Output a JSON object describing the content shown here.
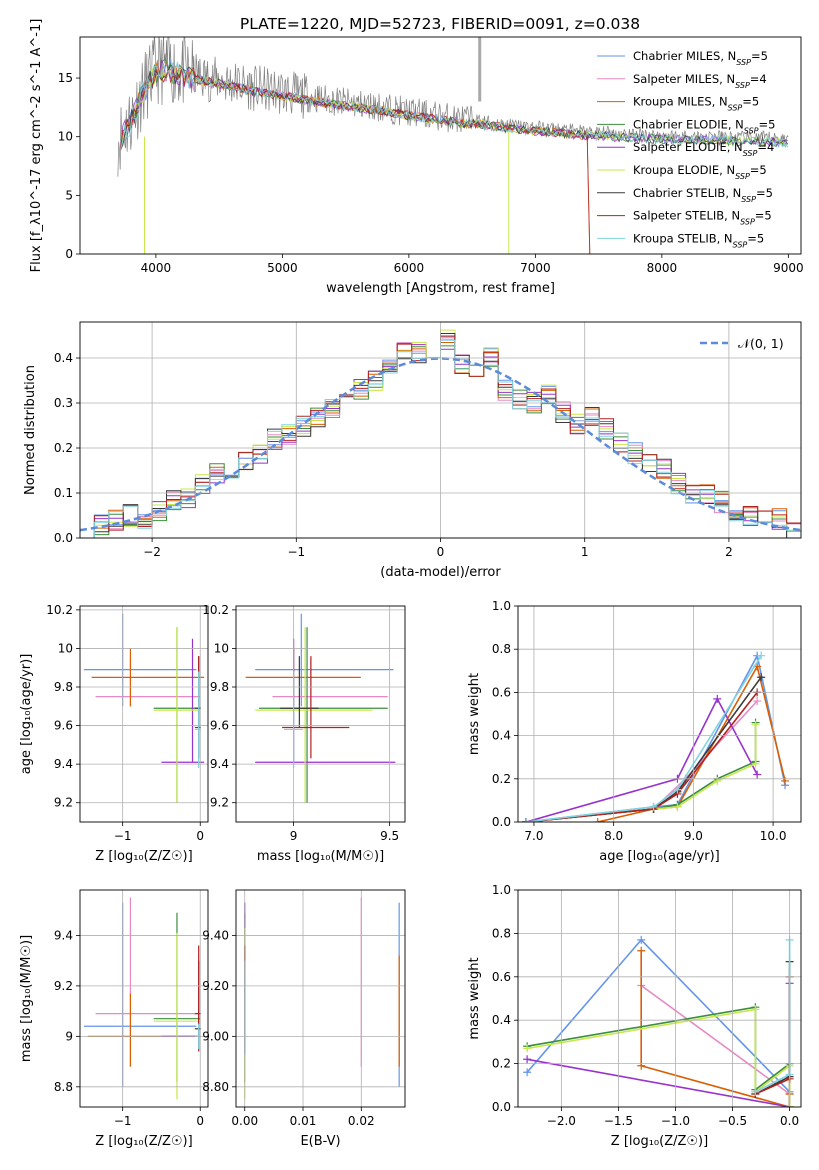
{
  "title": "PLATE=1220, MJD=52723, FIBERID=0091, z=0.038",
  "series_colors": [
    "#6495ed",
    "#e78ac3",
    "#d95f02",
    "#3c8d3c",
    "#9932cc",
    "#c6e84b",
    "#3a3a3a",
    "#b22222",
    "#7fd4e0"
  ],
  "chart_data": [
    {
      "id": "spectrum",
      "type": "line",
      "xlabel": "wavelength [Angstrom, rest frame]",
      "ylabel": "Flux [f_λ10^-17 erg cm^-2 s^-1 A^-1]",
      "xlim": [
        3400,
        9100
      ],
      "ylim": [
        0,
        18.5
      ],
      "xticks": [
        4000,
        5000,
        6000,
        7000,
        8000,
        9000
      ],
      "yticks": [
        0,
        5,
        10,
        15
      ],
      "grid": false,
      "legend_position": "top-right",
      "legend": [
        {
          "label": "Chabrier MILES, N",
          "sub": "SSP",
          "tail": "=5",
          "color": "#6495ed"
        },
        {
          "label": "Salpeter MILES, N",
          "sub": "SSP",
          "tail": "=4",
          "color": "#e78ac3"
        },
        {
          "label": "Kroupa MILES, N",
          "sub": "SSP",
          "tail": "=5",
          "color": "#d95f02"
        },
        {
          "label": "Chabrier ELODIE, N",
          "sub": "SSP",
          "tail": "=5",
          "color": "#3c8d3c"
        },
        {
          "label": "Salpeter ELODIE, N",
          "sub": "SSP",
          "tail": "=4",
          "color": "#9932cc"
        },
        {
          "label": "Kroupa ELODIE, N",
          "sub": "SSP",
          "tail": "=5",
          "color": "#c6e84b"
        },
        {
          "label": "Chabrier STELIB, N",
          "sub": "SSP",
          "tail": "=5",
          "color": "#3a3a3a"
        },
        {
          "label": "Salpeter STELIB, N",
          "sub": "SSP",
          "tail": "=5",
          "color": "#b22222"
        },
        {
          "label": "Kroupa STELIB, N",
          "sub": "SSP",
          "tail": "=5",
          "color": "#7fd4e0"
        }
      ],
      "data_continuum": {
        "x": [
          3700,
          3800,
          3900,
          4000,
          4100,
          4200,
          4400,
          4600,
          4800,
          5000,
          5200,
          5500,
          5800,
          6000,
          6200,
          6400,
          6600,
          6800,
          7000,
          7200,
          7400,
          7600,
          7800,
          8000,
          8200,
          8400,
          8600,
          8800,
          9000
        ],
        "y": [
          9.8,
          11.5,
          14.0,
          15.8,
          16.0,
          15.5,
          15.0,
          14.6,
          14.1,
          13.8,
          13.4,
          12.9,
          12.5,
          12.1,
          11.8,
          11.5,
          11.3,
          11.0,
          10.8,
          10.6,
          10.4,
          10.3,
          10.2,
          10.1,
          10.0,
          10.0,
          9.9,
          9.9,
          9.8
        ]
      }
    },
    {
      "id": "residuals",
      "type": "histogram",
      "xlabel": "(data-model)/error",
      "ylabel": "Normed distribution",
      "xlim": [
        -2.5,
        2.5
      ],
      "ylim": [
        0,
        0.48
      ],
      "xticks": [
        -2,
        -1,
        0,
        1,
        2
      ],
      "yticks": [
        0.0,
        0.1,
        0.2,
        0.3,
        0.4
      ],
      "grid": true,
      "bin_width": 0.1,
      "bins_left": [
        -2.5,
        -2.4,
        -2.3,
        -2.2,
        -2.1,
        -2.0,
        -1.9,
        -1.8,
        -1.7,
        -1.6,
        -1.5,
        -1.4,
        -1.3,
        -1.2,
        -1.1,
        -1.0,
        -0.9,
        -0.8,
        -0.7,
        -0.6,
        -0.5,
        -0.4,
        -0.3,
        -0.2,
        -0.1,
        0.0,
        0.1,
        0.2,
        0.3,
        0.4,
        0.5,
        0.6,
        0.7,
        0.8,
        0.9,
        1.0,
        1.1,
        1.2,
        1.3,
        1.4,
        1.5,
        1.6,
        1.7,
        1.8,
        1.9,
        2.0,
        2.1,
        2.2,
        2.3,
        2.4
      ],
      "hist": [
        0.02,
        0.03,
        0.04,
        0.05,
        0.04,
        0.06,
        0.08,
        0.09,
        0.12,
        0.14,
        0.13,
        0.17,
        0.19,
        0.22,
        0.23,
        0.25,
        0.27,
        0.29,
        0.31,
        0.33,
        0.35,
        0.38,
        0.42,
        0.41,
        0.38,
        0.44,
        0.39,
        0.38,
        0.4,
        0.33,
        0.31,
        0.3,
        0.32,
        0.28,
        0.25,
        0.27,
        0.24,
        0.21,
        0.19,
        0.17,
        0.15,
        0.12,
        0.1,
        0.1,
        0.08,
        0.06,
        0.05,
        0.05,
        0.04,
        0.02
      ],
      "gaussian_label": "𝒩(0, 1)",
      "gaussian_color": "#5b8bd9",
      "legend_position": "top-right"
    },
    {
      "id": "age_vs_Z",
      "type": "errorbar",
      "xlabel": "Z [log₁₀(Z/Z☉)]",
      "ylabel": "age [log₁₀(age/yr)]",
      "xlim": [
        -1.55,
        0.1
      ],
      "ylim": [
        9.1,
        10.22
      ],
      "xticks": [
        -1,
        0
      ],
      "yticks": [
        9.2,
        9.4,
        9.6,
        9.8,
        10.0,
        10.2
      ],
      "grid": true,
      "points": [
        {
          "x": -1.0,
          "xerr": [
            0.5,
            0.95
          ],
          "y": 9.89,
          "yerr": [
            0.19,
            0.29
          ],
          "color": "#6495ed"
        },
        {
          "x": -0.9,
          "xerr": [
            0.45,
            0.9
          ],
          "y": 9.75,
          "yerr": [
            0.05,
            0.2
          ],
          "color": "#e78ac3"
        },
        {
          "x": -0.9,
          "xerr": [
            0.5,
            0.95
          ],
          "y": 9.85,
          "yerr": [
            0.15,
            0.15
          ],
          "color": "#d95f02"
        },
        {
          "x": -0.3,
          "xerr": [
            0.3,
            0.3
          ],
          "y": 9.69,
          "yerr": [
            0.49,
            0.42
          ],
          "color": "#3c8d3c"
        },
        {
          "x": -0.1,
          "xerr": [
            0.4,
            0.15
          ],
          "y": 9.41,
          "yerr": [
            0.0,
            0.64
          ],
          "color": "#9932cc"
        },
        {
          "x": -0.3,
          "xerr": [
            0.3,
            0.28
          ],
          "y": 9.68,
          "yerr": [
            0.48,
            0.43
          ],
          "color": "#c6e84b"
        },
        {
          "x": -0.02,
          "xerr": [
            0.05,
            0.03
          ],
          "y": 9.69,
          "yerr": [
            0.1,
            0.27
          ],
          "color": "#3a3a3a"
        },
        {
          "x": -0.02,
          "xerr": [
            0.05,
            0.03
          ],
          "y": 9.59,
          "yerr": [
            0.16,
            0.37
          ],
          "color": "#b22222"
        },
        {
          "x": -0.02,
          "xerr": [
            0.05,
            0.03
          ],
          "y": 9.58,
          "yerr": [
            0.2,
            0.3
          ],
          "color": "#7fd4e0"
        }
      ]
    },
    {
      "id": "age_vs_mass",
      "type": "errorbar",
      "xlabel": "mass [log₁₀(M/M☉)]",
      "ylabel": "",
      "xlim": [
        8.7,
        9.58
      ],
      "ylim": [
        9.1,
        10.22
      ],
      "xticks": [
        9.0,
        9.5
      ],
      "yticks": [
        9.2,
        9.4,
        9.6,
        9.8,
        10.0,
        10.2
      ],
      "grid": true,
      "points": [
        {
          "x": 9.04,
          "xerr": [
            0.24,
            0.48
          ],
          "y": 9.89,
          "yerr": [
            0.19,
            0.29
          ],
          "color": "#6495ed"
        },
        {
          "x": 9.09,
          "xerr": [
            0.2,
            0.4
          ],
          "y": 9.75,
          "yerr": [
            0.05,
            0.2
          ],
          "color": "#e78ac3"
        },
        {
          "x": 9.0,
          "xerr": [
            0.25,
            0.35
          ],
          "y": 9.85,
          "yerr": [
            0.15,
            0.15
          ],
          "color": "#d95f02"
        },
        {
          "x": 9.07,
          "xerr": [
            0.25,
            0.42
          ],
          "y": 9.69,
          "yerr": [
            0.49,
            0.42
          ],
          "color": "#3c8d3c"
        },
        {
          "x": 9.0,
          "xerr": [
            0.2,
            0.53
          ],
          "y": 9.41,
          "yerr": [
            0.0,
            0.64
          ],
          "color": "#9932cc"
        },
        {
          "x": 9.06,
          "xerr": [
            0.26,
            0.35
          ],
          "y": 9.68,
          "yerr": [
            0.48,
            0.43
          ],
          "color": "#c6e84b"
        },
        {
          "x": 9.03,
          "xerr": [
            0.1,
            0.1
          ],
          "y": 9.69,
          "yerr": [
            0.1,
            0.27
          ],
          "color": "#3a3a3a"
        },
        {
          "x": 9.09,
          "xerr": [
            0.15,
            0.2
          ],
          "y": 9.59,
          "yerr": [
            0.16,
            0.37
          ],
          "color": "#b22222"
        },
        {
          "x": 9.0,
          "xerr": [
            0.05,
            0.05
          ],
          "y": 9.58,
          "yerr": [
            0.2,
            0.3
          ],
          "color": "#7fd4e0"
        }
      ]
    },
    {
      "id": "mass_weight_vs_age",
      "type": "line",
      "xlabel": "age [log₁₀(age/yr)]",
      "ylabel": "mass weight",
      "xlim": [
        6.8,
        10.35
      ],
      "ylim": [
        0,
        1.0
      ],
      "xticks": [
        7,
        8,
        9,
        10
      ],
      "yticks": [
        0.0,
        0.2,
        0.4,
        0.6,
        0.8,
        1.0
      ],
      "grid": true,
      "series": [
        {
          "color": "#6495ed",
          "x": [
            6.9,
            8.5,
            8.8,
            9.8,
            10.15
          ],
          "y": [
            0.0,
            0.07,
            0.08,
            0.77,
            0.17
          ]
        },
        {
          "color": "#e78ac3",
          "x": [
            6.9,
            8.5,
            8.9,
            9.8
          ],
          "y": [
            0.0,
            0.06,
            0.2,
            0.56
          ]
        },
        {
          "color": "#d95f02",
          "x": [
            7.8,
            8.5,
            8.8,
            9.8,
            10.15
          ],
          "y": [
            0.0,
            0.06,
            0.07,
            0.72,
            0.19
          ]
        },
        {
          "color": "#3c8d3c",
          "x": [
            6.9,
            8.5,
            8.8,
            9.3,
            9.78,
            9.78
          ],
          "y": [
            0.0,
            0.06,
            0.08,
            0.2,
            0.28,
            0.46
          ]
        },
        {
          "color": "#9932cc",
          "x": [
            6.9,
            8.8,
            9.3,
            9.8
          ],
          "y": [
            0.0,
            0.2,
            0.57,
            0.22
          ]
        },
        {
          "color": "#c6e84b",
          "x": [
            6.9,
            8.5,
            8.8,
            9.3,
            9.78,
            9.78
          ],
          "y": [
            0.0,
            0.06,
            0.07,
            0.19,
            0.27,
            0.45
          ]
        },
        {
          "color": "#3a3a3a",
          "x": [
            6.9,
            8.5,
            8.8,
            9.85
          ],
          "y": [
            0.0,
            0.06,
            0.14,
            0.67
          ]
        },
        {
          "color": "#b22222",
          "x": [
            6.9,
            8.5,
            8.8,
            9.8
          ],
          "y": [
            0.0,
            0.06,
            0.13,
            0.6
          ]
        },
        {
          "color": "#7fd4e0",
          "x": [
            6.9,
            8.5,
            8.8,
            9.85
          ],
          "y": [
            0.0,
            0.07,
            0.15,
            0.77
          ]
        }
      ]
    },
    {
      "id": "mass_vs_Z",
      "type": "errorbar",
      "xlabel": "Z [log₁₀(Z/Z☉)]",
      "ylabel": "mass [log₁₀(M/M☉)]",
      "xlim": [
        -1.55,
        0.1
      ],
      "ylim": [
        8.72,
        9.58
      ],
      "xticks": [
        -1,
        0
      ],
      "yticks": [
        8.8,
        9.0,
        9.2,
        9.4
      ],
      "grid": true,
      "points": [
        {
          "x": -1.0,
          "xerr": [
            0.5,
            0.95
          ],
          "y": 9.04,
          "yerr": [
            0.24,
            0.49
          ],
          "color": "#6495ed"
        },
        {
          "x": -0.9,
          "xerr": [
            0.45,
            0.9
          ],
          "y": 9.09,
          "yerr": [
            0.21,
            0.46
          ],
          "color": "#e78ac3"
        },
        {
          "x": -0.9,
          "xerr": [
            0.55,
            0.9
          ],
          "y": 9.0,
          "yerr": [
            0.12,
            0.17
          ],
          "color": "#d95f02"
        },
        {
          "x": -0.3,
          "xerr": [
            0.3,
            0.3
          ],
          "y": 9.07,
          "yerr": [
            0.25,
            0.42
          ],
          "color": "#3c8d3c"
        },
        {
          "x": -0.1,
          "xerr": [
            0.4,
            0.1
          ],
          "y": 9.0,
          "yerr": [
            0.0,
            0.0
          ],
          "color": "#9932cc"
        },
        {
          "x": -0.3,
          "xerr": [
            0.3,
            0.28
          ],
          "y": 9.06,
          "yerr": [
            0.31,
            0.35
          ],
          "color": "#c6e84b"
        },
        {
          "x": -0.02,
          "xerr": [
            0.05,
            0.03
          ],
          "y": 9.03,
          "yerr": [
            0.08,
            0.27
          ],
          "color": "#3a3a3a"
        },
        {
          "x": -0.02,
          "xerr": [
            0.05,
            0.03
          ],
          "y": 9.09,
          "yerr": [
            0.15,
            0.27
          ],
          "color": "#b22222"
        },
        {
          "x": -0.02,
          "xerr": [
            0.05,
            0.03
          ],
          "y": 9.0,
          "yerr": [
            0.05,
            0.05
          ],
          "color": "#7fd4e0"
        }
      ]
    },
    {
      "id": "mass_vs_EBV",
      "type": "errorbar",
      "xlabel": "E(B-V)",
      "ylabel": "",
      "xlim": [
        -0.0015,
        0.0275
      ],
      "ylim": [
        8.72,
        9.58
      ],
      "xticks": [
        0.0,
        0.01,
        0.02
      ],
      "yticks": [
        8.8,
        9.0,
        9.2,
        9.4
      ],
      "grid": true,
      "points": [
        {
          "x": 0.0265,
          "y": 9.04,
          "yerr": [
            0.24,
            0.49
          ],
          "color": "#6495ed"
        },
        {
          "x": 0.02,
          "y": 9.09,
          "yerr": [
            0.21,
            0.46
          ],
          "color": "#e78ac3"
        },
        {
          "x": 0.0265,
          "y": 9.0,
          "yerr": [
            0.12,
            0.32
          ],
          "color": "#d95f02"
        },
        {
          "x": 0.0,
          "y": 9.07,
          "yerr": [
            0.25,
            0.42
          ],
          "color": "#3c8d3c"
        },
        {
          "x": 0.0,
          "y": 9.0,
          "yerr": [
            0.0,
            0.53
          ],
          "color": "#9932cc"
        },
        {
          "x": 0.0,
          "y": 9.06,
          "yerr": [
            0.31,
            0.37
          ],
          "color": "#c6e84b"
        },
        {
          "x": 0.0,
          "y": 9.03,
          "yerr": [
            0.1,
            0.27
          ],
          "color": "#3a3a3a"
        },
        {
          "x": 0.0,
          "y": 9.09,
          "yerr": [
            0.15,
            0.27
          ],
          "color": "#b22222"
        },
        {
          "x": 0.0,
          "y": 9.0,
          "yerr": [
            0.08,
            0.3
          ],
          "color": "#7fd4e0"
        }
      ]
    },
    {
      "id": "mass_weight_vs_Z",
      "type": "line",
      "xlabel": "Z [log₁₀(Z/Z☉)]",
      "ylabel": "mass weight",
      "xlim": [
        -2.38,
        0.1
      ],
      "ylim": [
        0,
        1.0
      ],
      "xticks": [
        -2.0,
        -1.5,
        -1.0,
        -0.5,
        0.0
      ],
      "yticks": [
        0.0,
        0.2,
        0.4,
        0.6,
        0.8,
        1.0
      ],
      "grid": true,
      "series": [
        {
          "color": "#6495ed",
          "x": [
            -2.3,
            -1.3,
            0.0,
            0.0
          ],
          "y": [
            0.16,
            0.77,
            0.07,
            0.0
          ]
        },
        {
          "color": "#e78ac3",
          "x": [
            -1.3,
            0.0,
            0.0
          ],
          "y": [
            0.56,
            0.06,
            0.0
          ]
        },
        {
          "color": "#d95f02",
          "x": [
            -1.3,
            -1.3,
            0.0,
            0.0
          ],
          "y": [
            0.72,
            0.19,
            0.0,
            0.06
          ]
        },
        {
          "color": "#3c8d3c",
          "x": [
            -2.3,
            -0.3,
            -0.3,
            0.0,
            0.0
          ],
          "y": [
            0.28,
            0.46,
            0.08,
            0.2,
            0.0
          ]
        },
        {
          "color": "#9932cc",
          "x": [
            -2.3,
            0.0,
            0.0
          ],
          "y": [
            0.22,
            0.0,
            0.57
          ]
        },
        {
          "color": "#c6e84b",
          "x": [
            -2.3,
            -0.3,
            -0.3,
            0.0,
            0.0
          ],
          "y": [
            0.27,
            0.45,
            0.07,
            0.19,
            0.0
          ]
        },
        {
          "color": "#3a3a3a",
          "x": [
            -0.3,
            0.0,
            0.0
          ],
          "y": [
            0.06,
            0.14,
            0.67
          ]
        },
        {
          "color": "#b22222",
          "x": [
            -0.3,
            0.0,
            0.0
          ],
          "y": [
            0.06,
            0.13,
            0.6
          ]
        },
        {
          "color": "#7fd4e0",
          "x": [
            -0.3,
            0.0,
            0.0
          ],
          "y": [
            0.07,
            0.15,
            0.77
          ]
        }
      ]
    }
  ]
}
